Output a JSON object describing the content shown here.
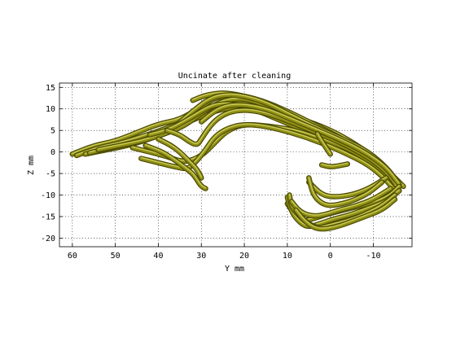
{
  "chart_data": {
    "type": "line",
    "title": "Uncinate after cleaning",
    "xlabel": "Y mm",
    "ylabel": "Z mm",
    "xlim": [
      -19,
      63
    ],
    "ylim": [
      -22,
      16
    ],
    "x_reversed": true,
    "grid": true,
    "x_ticks": [
      60,
      50,
      40,
      30,
      20,
      10,
      0,
      -10
    ],
    "y_ticks": [
      15,
      10,
      5,
      0,
      -5,
      -10,
      -15,
      -20
    ],
    "colors": {
      "fiber": "#8f8f14",
      "fiber_shadow": "#4a4a05",
      "fiber_highlight": "#c9c957"
    },
    "series": [
      {
        "x": [
          60,
          55,
          50,
          45,
          40,
          35,
          30,
          27,
          24,
          20,
          14,
          8,
          2,
          -4,
          -10,
          -14,
          -17
        ],
        "y": [
          -0.5,
          1.5,
          2.5,
          4.5,
          6.5,
          7.5,
          10.5,
          12.5,
          13,
          12.5,
          11,
          8,
          6,
          3,
          -1,
          -5,
          -8
        ]
      },
      {
        "x": [
          59,
          54,
          49,
          44,
          38,
          33,
          28,
          24,
          19,
          13,
          7,
          1,
          -5,
          -10,
          -14,
          -16
        ],
        "y": [
          -0.8,
          1,
          2,
          3.5,
          5.5,
          7.5,
          10,
          11.5,
          11.8,
          10.2,
          6.5,
          4,
          1.5,
          -2,
          -6,
          -9
        ]
      },
      {
        "x": [
          57,
          52,
          47,
          42,
          37,
          32,
          27,
          22,
          16,
          10,
          4,
          -2,
          -8,
          -13,
          -16
        ],
        "y": [
          -0.5,
          0.5,
          1.5,
          3,
          5,
          7.5,
          9.5,
          10.5,
          9.5,
          7,
          4.5,
          2,
          -1,
          -5,
          -9
        ]
      },
      {
        "x": [
          56,
          51,
          46,
          41,
          36,
          31,
          26,
          21,
          15,
          9,
          3,
          -3,
          -9,
          -13,
          -16
        ],
        "y": [
          -0.2,
          1,
          2,
          3.5,
          6,
          8.5,
          11,
          12,
          10.5,
          8,
          5,
          2.5,
          -0.5,
          -4,
          -8
        ]
      },
      {
        "x": [
          54,
          49,
          44,
          39,
          34,
          30,
          26,
          22,
          18,
          12,
          6,
          0,
          -6,
          -11,
          -15
        ],
        "y": [
          0.5,
          1.5,
          2.5,
          4,
          6,
          9,
          11.5,
          12.5,
          12,
          9.5,
          6,
          3.5,
          1,
          -3,
          -7
        ]
      },
      {
        "x": [
          32,
          29,
          25,
          21,
          16,
          10,
          4,
          -2,
          -7,
          -12,
          -15
        ],
        "y": [
          12,
          13.2,
          13.8,
          13.2,
          12,
          9.5,
          6.5,
          3.5,
          0.5,
          -3,
          -6.5
        ]
      },
      {
        "x": [
          36,
          32,
          28,
          24,
          20,
          15,
          9,
          3,
          -3,
          -9,
          -14,
          -16
        ],
        "y": [
          6,
          9.5,
          12.5,
          13.4,
          13,
          11.5,
          8.5,
          5.5,
          3,
          0,
          -4.5,
          -8
        ]
      },
      {
        "x": [
          42,
          38,
          34,
          30,
          27,
          23,
          18,
          12,
          6,
          0,
          -6,
          -12,
          -15
        ],
        "y": [
          4,
          5,
          7,
          9.5,
          11,
          11.3,
          10,
          7.5,
          5,
          2.5,
          -0.5,
          -4.5,
          -8
        ]
      },
      {
        "x": [
          46,
          42,
          38,
          34,
          30,
          27,
          24,
          20,
          14,
          8,
          2,
          -5,
          -11,
          -15
        ],
        "y": [
          1,
          0,
          -1,
          -2.5,
          -1,
          2,
          5,
          6.5,
          6,
          5,
          3,
          0.5,
          -3.5,
          -7.5
        ]
      },
      {
        "x": [
          44,
          40,
          36,
          33,
          31,
          29,
          27,
          24,
          20,
          15,
          9,
          3,
          -3,
          -9,
          -13,
          -15
        ],
        "y": [
          -1.5,
          -2.5,
          -3.5,
          -4,
          -2,
          0.5,
          3.5,
          5.5,
          6.5,
          6,
          4.5,
          2.5,
          0,
          -3,
          -6.5,
          -9
        ]
      },
      {
        "x": [
          43,
          39,
          36,
          34,
          32,
          31,
          30,
          29
        ],
        "y": [
          1.5,
          0,
          -2,
          -3.5,
          -5,
          -6.5,
          -8,
          -8.5
        ]
      },
      {
        "x": [
          40,
          37,
          35,
          33,
          31,
          30
        ],
        "y": [
          3,
          1.5,
          0,
          -2,
          -4,
          -6
        ]
      },
      {
        "x": [
          38,
          35,
          33,
          31,
          30,
          28,
          26,
          23,
          19,
          14,
          8,
          2,
          -4,
          -10,
          -14,
          -16
        ],
        "y": [
          5,
          4,
          2.5,
          1.5,
          3,
          6,
          8,
          9.5,
          9.8,
          8.8,
          6.5,
          4,
          1.5,
          -2,
          -5.5,
          -9
        ]
      },
      {
        "x": [
          30,
          27,
          24,
          20,
          15,
          10,
          4,
          -2,
          -8,
          -13,
          -16
        ],
        "y": [
          7,
          9.5,
          10.8,
          11,
          10,
          8,
          5.5,
          3,
          0,
          -3.5,
          -7.5
        ]
      },
      {
        "x": [
          -16,
          -14,
          -11,
          -7,
          -3,
          1,
          4,
          6,
          8,
          10
        ],
        "y": [
          -8,
          -10,
          -11.5,
          -12.5,
          -13.5,
          -14.5,
          -15.5,
          -16,
          -15,
          -12
        ]
      },
      {
        "x": [
          -16,
          -13,
          -9,
          -5,
          -1,
          2,
          5,
          7,
          9,
          10
        ],
        "y": [
          -9,
          -11.5,
          -13,
          -14.5,
          -15.5,
          -16.5,
          -17.5,
          -16.5,
          -14,
          -10.5
        ]
      },
      {
        "x": [
          -15,
          -12,
          -8,
          -4,
          0,
          3,
          6,
          9,
          9.5
        ],
        "y": [
          -10,
          -12.5,
          -14.5,
          -16,
          -17,
          -17.8,
          -16,
          -13,
          -10
        ]
      },
      {
        "x": [
          -14,
          -10,
          -6,
          -2,
          1,
          4,
          7,
          9
        ],
        "y": [
          -8.5,
          -11,
          -12.5,
          -13.5,
          -14.5,
          -15,
          -14,
          -11.5
        ]
      },
      {
        "x": [
          -13,
          -9,
          -5,
          -1,
          2,
          5
        ],
        "y": [
          -6,
          -8.5,
          -10,
          -10.5,
          -10,
          -7
        ]
      },
      {
        "x": [
          -12,
          -9,
          -6,
          -3,
          0,
          2,
          4,
          5
        ],
        "y": [
          -7,
          -9.5,
          -11,
          -12,
          -12.5,
          -12,
          -10,
          -6
        ]
      },
      {
        "x": [
          -15,
          -12,
          -8,
          -4,
          -1,
          2,
          4,
          6,
          8
        ],
        "y": [
          -11,
          -13.5,
          -15,
          -16.5,
          -17.5,
          -18,
          -17.5,
          -16,
          -13.5
        ]
      },
      {
        "x": [
          3,
          2,
          1,
          0
        ],
        "y": [
          4.2,
          2.5,
          1,
          -0.5
        ]
      },
      {
        "x": [
          2,
          0,
          -2,
          -4
        ],
        "y": [
          -3,
          -3.5,
          -3.2,
          -2.8
        ]
      }
    ]
  }
}
